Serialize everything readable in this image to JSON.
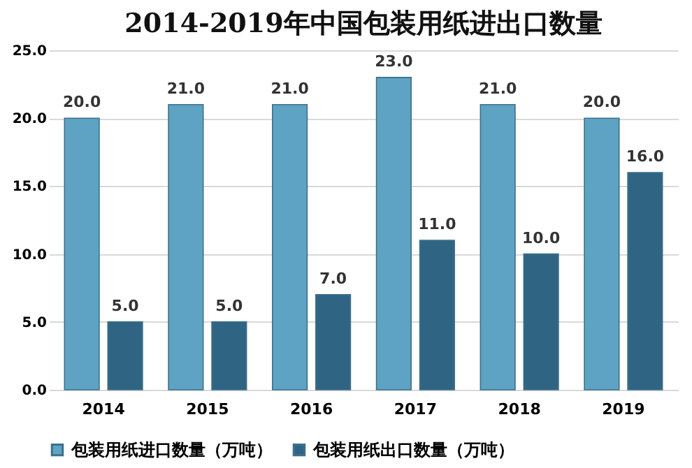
{
  "chart_data": {
    "type": "bar",
    "title": "2014-2019年中国包装用纸进出口数量",
    "categories": [
      "2014",
      "2015",
      "2016",
      "2017",
      "2018",
      "2019"
    ],
    "series": [
      {
        "name": "包装用纸进口数量（万吨）",
        "color": "#5fa3c4",
        "values": [
          20,
          21,
          21,
          23,
          21,
          20
        ],
        "value_labels": [
          "20.0",
          "21.0",
          "21.0",
          "23.0",
          "21.0",
          "20.0"
        ]
      },
      {
        "name": "包装用纸出口数量（万吨）",
        "color": "#2f6583",
        "values": [
          5,
          5,
          7,
          11,
          10,
          16
        ],
        "value_labels": [
          "5.0",
          "5.0",
          "7.0",
          "11.0",
          "10.0",
          "16.0"
        ]
      }
    ],
    "ylim": [
      0,
      25
    ],
    "yticks": [
      {
        "value": 0,
        "label": "0.0"
      },
      {
        "value": 5,
        "label": "5.0"
      },
      {
        "value": 10,
        "label": "10.0"
      },
      {
        "value": 15,
        "label": "15.0"
      },
      {
        "value": 20,
        "label": "20.0"
      },
      {
        "value": 25,
        "label": "25.0"
      }
    ],
    "grid": "y",
    "legend": "bottom"
  }
}
